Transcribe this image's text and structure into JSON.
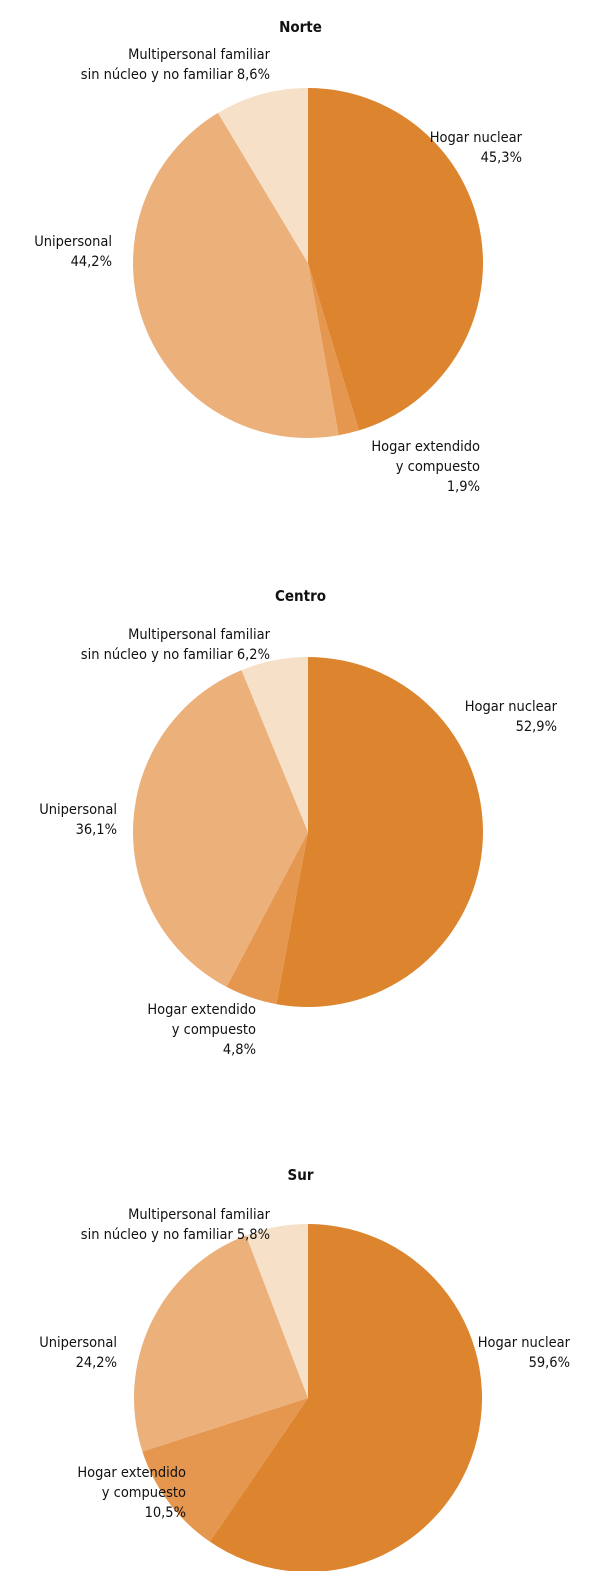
{
  "chart_data": [
    {
      "type": "pie",
      "title": "Norte",
      "categories": [
        "Hogar nuclear",
        "Hogar extendido\ny compuesto",
        "Unipersonal",
        "Multipersonal familiar\nsin núcleo y no familiar"
      ],
      "values": [
        45.3,
        1.9,
        44.2,
        8.6
      ],
      "value_labels": [
        "45,3%",
        "1,9%",
        "44,2%",
        "8,6%"
      ],
      "colors": [
        "#dd842e",
        "#e5964f",
        "#ecb07a",
        "#f6e0c8"
      ]
    },
    {
      "type": "pie",
      "title": "Centro",
      "categories": [
        "Hogar nuclear",
        "Hogar extendido\ny compuesto",
        "Unipersonal",
        "Multipersonal familiar\nsin núcleo y no familiar"
      ],
      "values": [
        52.9,
        4.8,
        36.1,
        6.2
      ],
      "value_labels": [
        "52,9%",
        "4,8%",
        "36,1%",
        "6,2%"
      ],
      "colors": [
        "#dd842e",
        "#e5964f",
        "#ecb07a",
        "#f6e0c8"
      ]
    },
    {
      "type": "pie",
      "title": "Sur",
      "categories": [
        "Hogar nuclear",
        "Hogar extendido\ny compuesto",
        "Unipersonal",
        "Multipersonal familiar\nsin núcleo y no familiar"
      ],
      "values": [
        59.6,
        10.5,
        24.2,
        5.8
      ],
      "value_labels": [
        "59,6%",
        "10,5%",
        "24,2%",
        "5,8%"
      ],
      "colors": [
        "#dd842e",
        "#e5964f",
        "#ecb07a",
        "#f6e0c8"
      ]
    }
  ]
}
